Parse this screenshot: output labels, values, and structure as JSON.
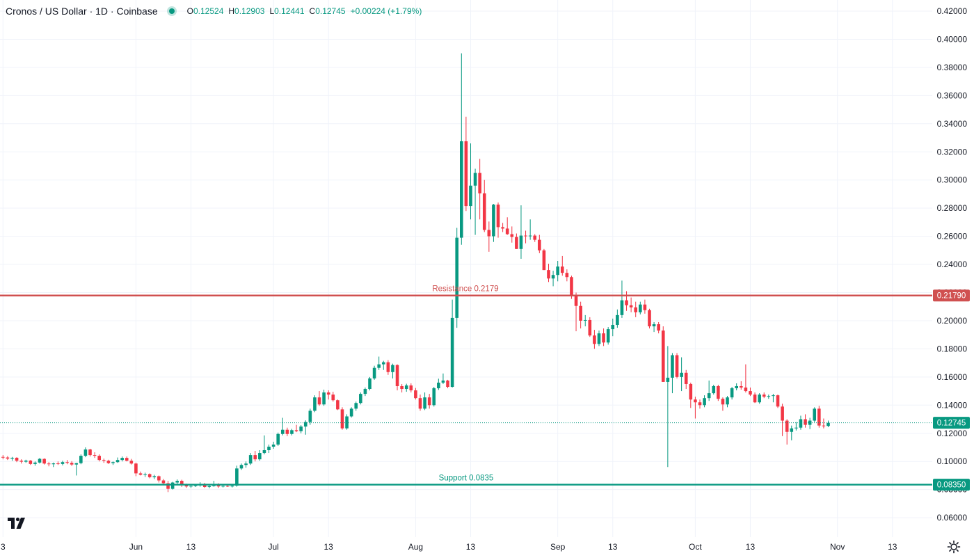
{
  "header": {
    "title": "Cronos / US Dollar · 1D · Coinbase",
    "open_label": "O",
    "open": "0.12524",
    "high_label": "H",
    "high": "0.12903",
    "low_label": "L",
    "low": "0.12441",
    "close_label": "C",
    "close": "0.12745",
    "change": "+0.00224 (+1.79%)"
  },
  "colors": {
    "up": "#089981",
    "down": "#f23645",
    "resistance": "#d05050",
    "support": "#089981",
    "grid": "#f0f3fa",
    "text": "#131722"
  },
  "icons": {
    "logo": "tradingview-logo-icon",
    "settings": "gear-icon",
    "live": "live-status-dot-icon"
  },
  "chart_data": {
    "type": "candlestick",
    "y_axis": {
      "ticks": [
        "0.42000",
        "0.40000",
        "0.38000",
        "0.36000",
        "0.34000",
        "0.32000",
        "0.30000",
        "0.28000",
        "0.26000",
        "0.24000",
        "0.22000",
        "0.20000",
        "0.18000",
        "0.16000",
        "0.14000",
        "0.12000",
        "0.10000",
        "0.08000",
        "0.06000"
      ],
      "ylim": [
        0.054,
        0.42
      ]
    },
    "x_axis": {
      "ticks": [
        {
          "label": "3",
          "day": 0
        },
        {
          "label": "Jun",
          "day": 29
        },
        {
          "label": "13",
          "day": 41
        },
        {
          "label": "Jul",
          "day": 59
        },
        {
          "label": "13",
          "day": 71
        },
        {
          "label": "Aug",
          "day": 90
        },
        {
          "label": "13",
          "day": 102
        },
        {
          "label": "Sep",
          "day": 121
        },
        {
          "label": "13",
          "day": 133
        },
        {
          "label": "Oct",
          "day": 151
        },
        {
          "label": "13",
          "day": 163
        },
        {
          "label": "Nov",
          "day": 182
        },
        {
          "label": "13",
          "day": 194
        }
      ]
    },
    "levels": [
      {
        "name": "Resistance",
        "value": 0.2179,
        "label": "Resistance 0.2179",
        "axis_label": "0.21790"
      },
      {
        "name": "Support",
        "value": 0.0835,
        "label": "Support 0.0835",
        "axis_label": "0.08350"
      }
    ],
    "last_price": {
      "value": 0.12745,
      "axis_label": "0.12745"
    },
    "candles_ohlc": [
      [
        0.1032,
        0.1045,
        0.1015,
        0.1028
      ],
      [
        0.1028,
        0.1038,
        0.101,
        0.102
      ],
      [
        0.102,
        0.1032,
        0.1005,
        0.1026
      ],
      [
        0.1026,
        0.103,
        0.0995,
        0.1005
      ],
      [
        0.1005,
        0.1015,
        0.0985,
        0.0998
      ],
      [
        0.0998,
        0.1012,
        0.099,
        0.1006
      ],
      [
        0.1006,
        0.101,
        0.0975,
        0.0982
      ],
      [
        0.0982,
        0.1,
        0.097,
        0.0992
      ],
      [
        0.0992,
        0.1025,
        0.0985,
        0.1018
      ],
      [
        0.1018,
        0.1022,
        0.0978,
        0.0985
      ],
      [
        0.0985,
        0.0995,
        0.0965,
        0.098
      ],
      [
        0.098,
        0.0992,
        0.096,
        0.0986
      ],
      [
        0.0986,
        0.1,
        0.0975,
        0.0982
      ],
      [
        0.0982,
        0.1005,
        0.0972,
        0.0995
      ],
      [
        0.0995,
        0.101,
        0.098,
        0.099
      ],
      [
        0.099,
        0.1002,
        0.0968,
        0.0978
      ],
      [
        0.0978,
        0.099,
        0.09,
        0.0988
      ],
      [
        0.0988,
        0.105,
        0.098,
        0.104
      ],
      [
        0.104,
        0.11,
        0.103,
        0.1085
      ],
      [
        0.1085,
        0.109,
        0.1035,
        0.1045
      ],
      [
        0.1045,
        0.1065,
        0.1025,
        0.104
      ],
      [
        0.104,
        0.105,
        0.1,
        0.101
      ],
      [
        0.101,
        0.102,
        0.099,
        0.1005
      ],
      [
        0.1005,
        0.1012,
        0.0982,
        0.0988
      ],
      [
        0.0988,
        0.1,
        0.0975,
        0.0995
      ],
      [
        0.0995,
        0.1028,
        0.099,
        0.101
      ],
      [
        0.101,
        0.1035,
        0.1,
        0.1025
      ],
      [
        0.1025,
        0.1035,
        0.1,
        0.1005
      ],
      [
        0.1005,
        0.1018,
        0.0978,
        0.0985
      ],
      [
        0.0985,
        0.0992,
        0.0895,
        0.0915
      ],
      [
        0.0915,
        0.0928,
        0.09,
        0.0905
      ],
      [
        0.0905,
        0.092,
        0.089,
        0.091
      ],
      [
        0.091,
        0.0915,
        0.088,
        0.0888
      ],
      [
        0.0888,
        0.0905,
        0.0875,
        0.0895
      ],
      [
        0.0895,
        0.09,
        0.085,
        0.0865
      ],
      [
        0.0865,
        0.0875,
        0.083,
        0.0845
      ],
      [
        0.0845,
        0.0862,
        0.0782,
        0.0805
      ],
      [
        0.0805,
        0.0855,
        0.08,
        0.085
      ],
      [
        0.085,
        0.0872,
        0.0835,
        0.0862
      ],
      [
        0.0862,
        0.087,
        0.0818,
        0.0832
      ],
      [
        0.0832,
        0.0842,
        0.0812,
        0.0822
      ],
      [
        0.0822,
        0.0832,
        0.0812,
        0.0826
      ],
      [
        0.0826,
        0.0838,
        0.0818,
        0.083
      ],
      [
        0.083,
        0.0852,
        0.082,
        0.084
      ],
      [
        0.084,
        0.0848,
        0.0812,
        0.0818
      ],
      [
        0.0818,
        0.083,
        0.081,
        0.0825
      ],
      [
        0.0825,
        0.0862,
        0.082,
        0.0835
      ],
      [
        0.0835,
        0.0845,
        0.0812,
        0.0822
      ],
      [
        0.0822,
        0.083,
        0.0815,
        0.0826
      ],
      [
        0.0826,
        0.0838,
        0.0818,
        0.0822
      ],
      [
        0.0822,
        0.0832,
        0.0815,
        0.0828
      ],
      [
        0.0828,
        0.097,
        0.082,
        0.095
      ],
      [
        0.095,
        0.0985,
        0.094,
        0.0975
      ],
      [
        0.0975,
        0.1,
        0.0955,
        0.0985
      ],
      [
        0.0985,
        0.106,
        0.0975,
        0.1045
      ],
      [
        0.1045,
        0.1075,
        0.1,
        0.1015
      ],
      [
        0.1015,
        0.108,
        0.1005,
        0.106
      ],
      [
        0.106,
        0.1185,
        0.105,
        0.108
      ],
      [
        0.108,
        0.112,
        0.106,
        0.1105
      ],
      [
        0.1105,
        0.114,
        0.109,
        0.112
      ],
      [
        0.112,
        0.1205,
        0.111,
        0.1195
      ],
      [
        0.1195,
        0.131,
        0.1185,
        0.1225
      ],
      [
        0.1225,
        0.124,
        0.118,
        0.1195
      ],
      [
        0.1195,
        0.1232,
        0.1185,
        0.1222
      ],
      [
        0.1222,
        0.126,
        0.1208,
        0.1215
      ],
      [
        0.1215,
        0.1258,
        0.12,
        0.1248
      ],
      [
        0.1248,
        0.1292,
        0.119,
        0.128
      ],
      [
        0.128,
        0.1375,
        0.126,
        0.136
      ],
      [
        0.136,
        0.147,
        0.135,
        0.1455
      ],
      [
        0.1455,
        0.15,
        0.1395,
        0.1405
      ],
      [
        0.1405,
        0.151,
        0.1395,
        0.149
      ],
      [
        0.149,
        0.1505,
        0.144,
        0.1475
      ],
      [
        0.1475,
        0.1495,
        0.1425,
        0.1435
      ],
      [
        0.1435,
        0.144,
        0.1365,
        0.137
      ],
      [
        0.137,
        0.1385,
        0.1225,
        0.1235
      ],
      [
        0.1235,
        0.1335,
        0.1225,
        0.132
      ],
      [
        0.132,
        0.1385,
        0.1312,
        0.1375
      ],
      [
        0.1375,
        0.1425,
        0.136,
        0.1415
      ],
      [
        0.1415,
        0.149,
        0.1405,
        0.148
      ],
      [
        0.148,
        0.1525,
        0.1465,
        0.1515
      ],
      [
        0.1515,
        0.16,
        0.1505,
        0.159
      ],
      [
        0.159,
        0.168,
        0.158,
        0.1665
      ],
      [
        0.1665,
        0.1745,
        0.165,
        0.169
      ],
      [
        0.169,
        0.1715,
        0.165,
        0.1705
      ],
      [
        0.1705,
        0.172,
        0.1615,
        0.1635
      ],
      [
        0.1635,
        0.1695,
        0.159,
        0.1685
      ],
      [
        0.1685,
        0.169,
        0.1505,
        0.1535
      ],
      [
        0.1535,
        0.155,
        0.149,
        0.1515
      ],
      [
        0.1515,
        0.1552,
        0.1495,
        0.154
      ],
      [
        0.154,
        0.1555,
        0.149,
        0.1505
      ],
      [
        0.1505,
        0.1522,
        0.144,
        0.145
      ],
      [
        0.145,
        0.1475,
        0.136,
        0.1375
      ],
      [
        0.1375,
        0.149,
        0.1365,
        0.1455
      ],
      [
        0.1455,
        0.148,
        0.1375,
        0.14
      ],
      [
        0.14,
        0.153,
        0.139,
        0.152
      ],
      [
        0.152,
        0.1588,
        0.1508,
        0.156
      ],
      [
        0.156,
        0.1625,
        0.155,
        0.1575
      ],
      [
        0.1575,
        0.158,
        0.152,
        0.153
      ],
      [
        0.153,
        0.215,
        0.1525,
        0.202
      ],
      [
        0.202,
        0.266,
        0.195,
        0.259
      ],
      [
        0.259,
        0.39,
        0.254,
        0.3275
      ],
      [
        0.3275,
        0.345,
        0.278,
        0.2815
      ],
      [
        0.2815,
        0.326,
        0.272,
        0.296
      ],
      [
        0.296,
        0.308,
        0.261,
        0.305
      ],
      [
        0.305,
        0.315,
        0.272,
        0.2905
      ],
      [
        0.2905,
        0.3,
        0.263,
        0.2645
      ],
      [
        0.2645,
        0.2705,
        0.249,
        0.26
      ],
      [
        0.26,
        0.283,
        0.256,
        0.2825
      ],
      [
        0.2825,
        0.284,
        0.259,
        0.2665
      ],
      [
        0.2665,
        0.2695,
        0.263,
        0.2655
      ],
      [
        0.2655,
        0.2735,
        0.261,
        0.2615
      ],
      [
        0.2615,
        0.267,
        0.2555,
        0.2595
      ],
      [
        0.2595,
        0.262,
        0.251,
        0.251
      ],
      [
        0.251,
        0.282,
        0.244,
        0.2605
      ],
      [
        0.2605,
        0.264,
        0.255,
        0.26
      ],
      [
        0.26,
        0.272,
        0.2575,
        0.2605
      ],
      [
        0.2605,
        0.2615,
        0.256,
        0.2575
      ],
      [
        0.2575,
        0.261,
        0.248,
        0.25
      ],
      [
        0.25,
        0.251,
        0.236,
        0.236
      ],
      [
        0.236,
        0.2405,
        0.2275,
        0.23
      ],
      [
        0.23,
        0.2355,
        0.2245,
        0.2325
      ],
      [
        0.2325,
        0.2425,
        0.228,
        0.2385
      ],
      [
        0.2385,
        0.246,
        0.232,
        0.234
      ],
      [
        0.234,
        0.2365,
        0.228,
        0.231
      ],
      [
        0.231,
        0.232,
        0.2155,
        0.2175
      ],
      [
        0.2175,
        0.22,
        0.1925,
        0.2105
      ],
      [
        0.2105,
        0.2135,
        0.1945,
        0.2
      ],
      [
        0.2,
        0.204,
        0.196,
        0.2005
      ],
      [
        0.2005,
        0.2025,
        0.1885,
        0.1895
      ],
      [
        0.1895,
        0.1935,
        0.18,
        0.1835
      ],
      [
        0.1835,
        0.193,
        0.182,
        0.191
      ],
      [
        0.191,
        0.1945,
        0.182,
        0.1845
      ],
      [
        0.1845,
        0.1955,
        0.183,
        0.194
      ],
      [
        0.194,
        0.2015,
        0.189,
        0.197
      ],
      [
        0.197,
        0.208,
        0.195,
        0.204
      ],
      [
        0.204,
        0.2285,
        0.202,
        0.2145
      ],
      [
        0.2145,
        0.221,
        0.207,
        0.211
      ],
      [
        0.211,
        0.2165,
        0.206,
        0.2095
      ],
      [
        0.2095,
        0.2135,
        0.2025,
        0.206
      ],
      [
        0.206,
        0.2135,
        0.2045,
        0.2115
      ],
      [
        0.2115,
        0.215,
        0.205,
        0.2075
      ],
      [
        0.2075,
        0.2085,
        0.1945,
        0.196
      ],
      [
        0.196,
        0.199,
        0.192,
        0.1975
      ],
      [
        0.1975,
        0.199,
        0.191,
        0.193
      ],
      [
        0.193,
        0.196,
        0.1565,
        0.1565
      ],
      [
        0.1565,
        0.182,
        0.096,
        0.1595
      ],
      [
        0.1595,
        0.177,
        0.1485,
        0.1755
      ],
      [
        0.1755,
        0.177,
        0.159,
        0.16
      ],
      [
        0.16,
        0.174,
        0.15,
        0.163
      ],
      [
        0.163,
        0.165,
        0.1515,
        0.155
      ],
      [
        0.155,
        0.156,
        0.138,
        0.144
      ],
      [
        0.144,
        0.146,
        0.1305,
        0.142
      ],
      [
        0.142,
        0.144,
        0.1375,
        0.14
      ],
      [
        0.14,
        0.147,
        0.1385,
        0.145
      ],
      [
        0.145,
        0.1575,
        0.143,
        0.1485
      ],
      [
        0.1485,
        0.1545,
        0.1475,
        0.1535
      ],
      [
        0.1535,
        0.1545,
        0.143,
        0.1445
      ],
      [
        0.1445,
        0.1455,
        0.136,
        0.1405
      ],
      [
        0.1405,
        0.1465,
        0.1385,
        0.1455
      ],
      [
        0.1455,
        0.153,
        0.144,
        0.152
      ],
      [
        0.152,
        0.1555,
        0.1505,
        0.1535
      ],
      [
        0.1535,
        0.157,
        0.151,
        0.1525
      ],
      [
        0.1525,
        0.169,
        0.149,
        0.15
      ],
      [
        0.15,
        0.1525,
        0.1465,
        0.1475
      ],
      [
        0.1475,
        0.149,
        0.1415,
        0.142
      ],
      [
        0.142,
        0.1485,
        0.141,
        0.1475
      ],
      [
        0.1475,
        0.149,
        0.145,
        0.146
      ],
      [
        0.146,
        0.1475,
        0.1445,
        0.1465
      ],
      [
        0.1465,
        0.148,
        0.142,
        0.147
      ],
      [
        0.147,
        0.1475,
        0.138,
        0.139
      ],
      [
        0.139,
        0.141,
        0.118,
        0.129
      ],
      [
        0.129,
        0.13,
        0.112,
        0.121
      ],
      [
        0.121,
        0.1255,
        0.115,
        0.1235
      ],
      [
        0.1235,
        0.128,
        0.122,
        0.124
      ],
      [
        0.124,
        0.1325,
        0.1225,
        0.13
      ],
      [
        0.13,
        0.1335,
        0.124,
        0.126
      ],
      [
        0.126,
        0.131,
        0.123,
        0.129
      ],
      [
        0.129,
        0.1385,
        0.128,
        0.1375
      ],
      [
        0.1375,
        0.1395,
        0.124,
        0.1255
      ],
      [
        0.1255,
        0.1305,
        0.1235,
        0.1252
      ],
      [
        0.1252,
        0.129,
        0.1244,
        0.1274
      ]
    ]
  }
}
